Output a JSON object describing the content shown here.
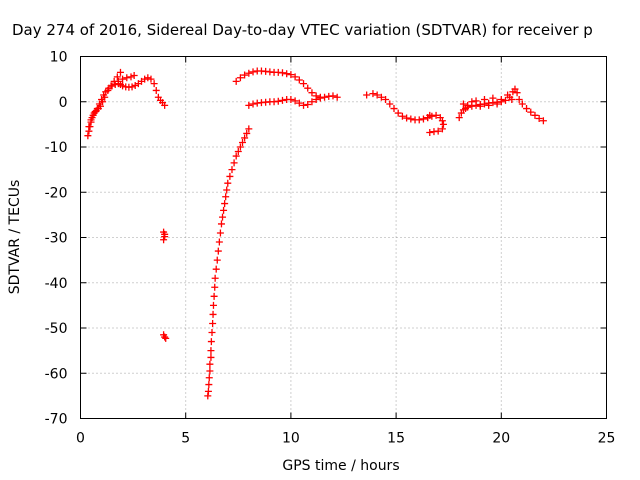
{
  "chart_data": {
    "type": "scatter",
    "title": "Day 274 of 2016, Sidereal Day-to-day VTEC variation (SDTVAR) for receiver p",
    "xlabel": "GPS time / hours",
    "ylabel": "SDTVAR / TECUs",
    "xlim": [
      0,
      25
    ],
    "ylim": [
      -70,
      10
    ],
    "xticks": [
      0,
      5,
      10,
      15,
      20,
      25
    ],
    "yticks": [
      10,
      0,
      -10,
      -20,
      -30,
      -40,
      -50,
      -60,
      -70
    ],
    "grid": true,
    "marker": "plus",
    "color": "#ff0000",
    "series": [
      {
        "points": [
          [
            0.35,
            -7.5
          ],
          [
            0.4,
            -6.5
          ],
          [
            0.45,
            -5.5
          ],
          [
            0.5,
            -4.5
          ],
          [
            0.55,
            -3.5
          ],
          [
            0.65,
            -2.5
          ],
          [
            0.75,
            -2
          ],
          [
            0.85,
            -1.5
          ],
          [
            0.95,
            -1
          ],
          [
            1.05,
            0
          ],
          [
            1.15,
            1
          ],
          [
            1.3,
            2.5
          ],
          [
            1.45,
            3.5
          ],
          [
            1.6,
            4.5
          ],
          [
            1.75,
            5.5
          ],
          [
            1.9,
            6.5
          ],
          [
            0.4,
            -5.5
          ],
          [
            0.5,
            -4
          ],
          [
            0.6,
            -3
          ],
          [
            0.7,
            -2.2
          ],
          [
            0.8,
            -1.5
          ],
          [
            0.9,
            -0.5
          ],
          [
            1.0,
            0.5
          ],
          [
            1.1,
            1.5
          ],
          [
            1.2,
            2.2
          ],
          [
            1.35,
            3
          ],
          [
            1.5,
            3.5
          ],
          [
            1.65,
            3.8
          ],
          [
            1.8,
            4
          ],
          [
            1.9,
            3.8
          ],
          [
            2.0,
            3.5
          ],
          [
            2.15,
            3.3
          ],
          [
            2.3,
            3.2
          ],
          [
            2.45,
            3.3
          ],
          [
            2.6,
            3.6
          ],
          [
            2.75,
            4
          ],
          [
            2.9,
            4.5
          ],
          [
            3.05,
            5
          ],
          [
            3.2,
            5.3
          ],
          [
            3.35,
            5
          ],
          [
            3.5,
            4
          ],
          [
            3.6,
            2.5
          ],
          [
            3.7,
            1
          ],
          [
            3.8,
            0.3
          ],
          [
            3.9,
            -0.2
          ],
          [
            4.0,
            -0.8
          ],
          [
            1.8,
            4.5
          ],
          [
            2.0,
            5
          ],
          [
            2.2,
            5.3
          ],
          [
            2.4,
            5.5
          ],
          [
            2.55,
            5.8
          ]
        ]
      },
      {
        "points": [
          [
            3.95,
            -28.8
          ],
          [
            4.0,
            -29.3
          ],
          [
            4.0,
            -29.8
          ],
          [
            3.95,
            -30.5
          ],
          [
            3.95,
            -51.5
          ],
          [
            4.0,
            -52
          ],
          [
            4.05,
            -52.3
          ]
        ]
      },
      {
        "points": [
          [
            6.05,
            -65
          ],
          [
            6.08,
            -64
          ],
          [
            6.1,
            -62.5
          ],
          [
            6.12,
            -61
          ],
          [
            6.15,
            -59.5
          ],
          [
            6.15,
            -58
          ],
          [
            6.2,
            -56.5
          ],
          [
            6.2,
            -55
          ],
          [
            6.22,
            -53
          ],
          [
            6.25,
            -51
          ],
          [
            6.28,
            -49
          ],
          [
            6.3,
            -47
          ],
          [
            6.32,
            -45
          ],
          [
            6.35,
            -43
          ],
          [
            6.38,
            -41
          ],
          [
            6.4,
            -39
          ],
          [
            6.45,
            -37
          ],
          [
            6.5,
            -35
          ],
          [
            6.55,
            -33
          ],
          [
            6.6,
            -31
          ],
          [
            6.65,
            -29
          ],
          [
            6.7,
            -27
          ],
          [
            6.75,
            -25.5
          ],
          [
            6.8,
            -24
          ],
          [
            6.85,
            -22.5
          ],
          [
            6.9,
            -21
          ],
          [
            6.95,
            -19.5
          ],
          [
            7.0,
            -18
          ],
          [
            7.1,
            -16.5
          ],
          [
            7.2,
            -15
          ],
          [
            7.3,
            -13.5
          ],
          [
            7.4,
            -12
          ],
          [
            7.5,
            -11
          ],
          [
            7.6,
            -10
          ],
          [
            7.7,
            -9
          ],
          [
            7.8,
            -8
          ],
          [
            7.9,
            -7
          ],
          [
            8.0,
            -6
          ]
        ]
      },
      {
        "points": [
          [
            7.4,
            4.5
          ],
          [
            7.6,
            5.3
          ],
          [
            7.8,
            5.9
          ],
          [
            8.0,
            6.3
          ],
          [
            8.2,
            6.6
          ],
          [
            8.4,
            6.8
          ],
          [
            8.6,
            6.8
          ],
          [
            8.8,
            6.7
          ],
          [
            9.0,
            6.6
          ],
          [
            9.2,
            6.5
          ],
          [
            9.4,
            6.5
          ],
          [
            9.6,
            6.4
          ],
          [
            9.8,
            6.2
          ],
          [
            10.0,
            6
          ],
          [
            10.2,
            5.5
          ],
          [
            10.4,
            4.8
          ],
          [
            10.6,
            4
          ],
          [
            10.8,
            3
          ],
          [
            11.0,
            2
          ],
          [
            11.2,
            1.3
          ],
          [
            11.4,
            1
          ],
          [
            11.6,
            1
          ],
          [
            11.8,
            1.2
          ],
          [
            12.0,
            1.3
          ],
          [
            12.2,
            1
          ]
        ]
      },
      {
        "points": [
          [
            8.0,
            -0.8
          ],
          [
            8.2,
            -0.5
          ],
          [
            8.4,
            -0.3
          ],
          [
            8.6,
            -0.2
          ],
          [
            8.8,
            -0.1
          ],
          [
            9.0,
            0
          ],
          [
            9.2,
            0
          ],
          [
            9.4,
            0.1
          ],
          [
            9.6,
            0.3
          ],
          [
            9.8,
            0.5
          ],
          [
            10.0,
            0.5
          ],
          [
            10.2,
            0.2
          ],
          [
            10.4,
            -0.3
          ],
          [
            10.6,
            -0.8
          ],
          [
            10.8,
            -0.6
          ],
          [
            11.0,
            0
          ],
          [
            11.2,
            0.5
          ],
          [
            11.4,
            0.8
          ]
        ]
      },
      {
        "points": [
          [
            13.6,
            1.5
          ],
          [
            13.9,
            1.8
          ],
          [
            14.1,
            1.5
          ],
          [
            14.3,
            1
          ],
          [
            14.5,
            0.5
          ],
          [
            14.7,
            -0.5
          ],
          [
            14.9,
            -1.5
          ],
          [
            15.1,
            -2.5
          ],
          [
            15.3,
            -3.2
          ],
          [
            15.5,
            -3.6
          ],
          [
            15.7,
            -3.8
          ],
          [
            15.9,
            -4
          ],
          [
            16.1,
            -4
          ],
          [
            16.3,
            -3.8
          ],
          [
            16.5,
            -3.5
          ],
          [
            16.7,
            -3.2
          ],
          [
            16.9,
            -3
          ],
          [
            17.1,
            -3.5
          ],
          [
            17.2,
            -4.2
          ],
          [
            17.25,
            -5
          ],
          [
            17.2,
            -6
          ],
          [
            17.0,
            -6.5
          ],
          [
            16.8,
            -6.6
          ],
          [
            16.6,
            -6.8
          ],
          [
            16.5,
            -3.5
          ],
          [
            16.6,
            -3
          ]
        ]
      },
      {
        "points": [
          [
            18.0,
            -3.5
          ],
          [
            18.1,
            -2.5
          ],
          [
            18.2,
            -1.8
          ],
          [
            18.3,
            -1.5
          ],
          [
            18.4,
            -1.2
          ],
          [
            18.6,
            -1
          ],
          [
            18.8,
            -0.8
          ],
          [
            19.0,
            -0.6
          ],
          [
            19.2,
            -0.5
          ],
          [
            19.4,
            -0.3
          ],
          [
            19.6,
            -0.2
          ],
          [
            19.8,
            -0.1
          ],
          [
            20.0,
            0
          ],
          [
            20.2,
            0.3
          ],
          [
            20.4,
            1
          ],
          [
            20.55,
            2.2
          ],
          [
            20.65,
            2.8
          ],
          [
            20.75,
            2
          ],
          [
            20.85,
            0.5
          ],
          [
            21.0,
            -0.5
          ],
          [
            21.2,
            -1.5
          ],
          [
            21.4,
            -2.3
          ],
          [
            21.6,
            -3
          ],
          [
            21.8,
            -3.7
          ],
          [
            22.0,
            -4.2
          ],
          [
            18.2,
            -0.5
          ],
          [
            18.4,
            -0.8
          ],
          [
            18.6,
            0
          ],
          [
            18.8,
            0.2
          ],
          [
            19.0,
            -1
          ],
          [
            19.2,
            0.5
          ],
          [
            19.4,
            -0.8
          ],
          [
            19.6,
            0.8
          ],
          [
            19.8,
            -0.5
          ],
          [
            20.0,
            0.5
          ],
          [
            20.3,
            1.5
          ],
          [
            20.5,
            0.5
          ]
        ]
      }
    ]
  }
}
